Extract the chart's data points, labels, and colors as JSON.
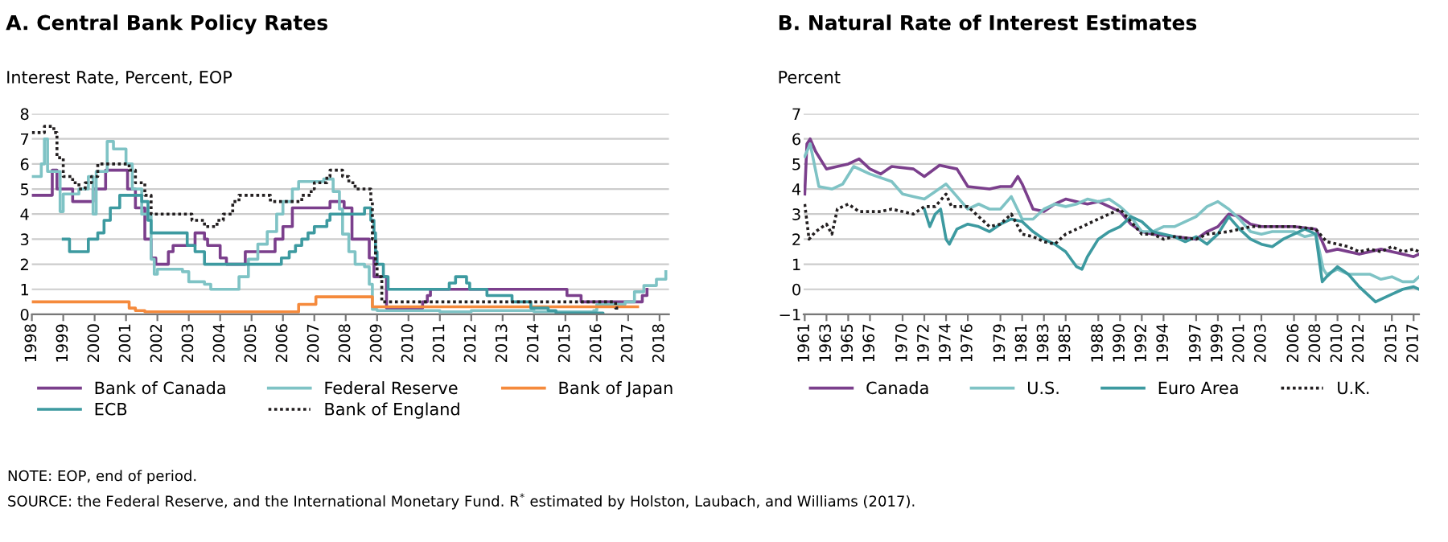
{
  "chart_data": [
    {
      "type": "step",
      "title": "A. Central Bank Policy Rates",
      "ylabel": "Interest Rate, Percent, EOP",
      "xlim": [
        1998,
        2018.3
      ],
      "xticks": [
        1998,
        1999,
        2000,
        2001,
        2002,
        2003,
        2004,
        2005,
        2006,
        2007,
        2008,
        2009,
        2010,
        2011,
        2012,
        2013,
        2014,
        2015,
        2016,
        2017,
        2018
      ],
      "ylim": [
        0,
        8
      ],
      "yticks": [
        0,
        1,
        2,
        3,
        4,
        5,
        6,
        7,
        8
      ],
      "grid": "y",
      "legend": "bottom",
      "series": [
        {
          "name": "Bank of Canada",
          "color": "#7b3f8c",
          "line_style": "solid",
          "x": [
            1998.0,
            1998.65,
            1998.8,
            1999.3,
            1999.95,
            2000.35,
            2001.05,
            2001.3,
            2001.6,
            2001.8,
            2001.95,
            2002.35,
            2002.5,
            2003.2,
            2003.5,
            2003.6,
            2004.0,
            2004.2,
            2004.8,
            2005.75,
            2006.0,
            2006.3,
            2007.5,
            2007.95,
            2008.2,
            2008.75,
            2008.9,
            2009.3,
            2010.45,
            2010.6,
            2010.7,
            2015.05,
            2015.5,
            2017.45,
            2017.6
          ],
          "values": [
            4.75,
            5.75,
            5.0,
            4.5,
            5.0,
            5.75,
            5.0,
            4.25,
            3.0,
            2.25,
            2.0,
            2.5,
            2.75,
            3.25,
            3.0,
            2.75,
            2.25,
            2.0,
            2.5,
            3.0,
            3.5,
            4.25,
            4.5,
            4.25,
            3.0,
            2.25,
            1.5,
            0.25,
            0.5,
            0.75,
            1.0,
            0.75,
            0.5,
            0.75,
            1.0
          ]
        },
        {
          "name": "Federal Reserve",
          "color": "#7fc3c5",
          "line_style": "solid",
          "x": [
            1998.0,
            1998.3,
            1998.4,
            1998.5,
            1998.9,
            1999.0,
            1999.5,
            1999.8,
            1999.95,
            2000.05,
            2000.4,
            2000.6,
            2001.0,
            2001.2,
            2001.5,
            2001.8,
            2001.9,
            2002.0,
            2002.8,
            2003.0,
            2003.5,
            2003.7,
            2004.4,
            2004.6,
            2004.9,
            2005.2,
            2005.5,
            2005.8,
            2006.0,
            2006.3,
            2006.5,
            2007.0,
            2007.3,
            2007.6,
            2007.8,
            2007.9,
            2008.1,
            2008.3,
            2008.6,
            2008.75,
            2008.85,
            2009.0,
            2011.0,
            2012.0,
            2014.0,
            2015.9,
            2016.0,
            2016.9,
            2017.2,
            2017.5,
            2017.9,
            2018.2
          ],
          "values": [
            5.5,
            6.0,
            7.0,
            5.7,
            4.1,
            4.8,
            5.0,
            5.5,
            4.0,
            5.7,
            6.9,
            6.6,
            6.0,
            5.0,
            4.0,
            2.2,
            1.6,
            1.8,
            1.7,
            1.3,
            1.2,
            1.0,
            1.0,
            1.5,
            2.2,
            2.8,
            3.3,
            4.0,
            4.5,
            5.0,
            5.3,
            5.3,
            5.4,
            4.9,
            4.2,
            3.2,
            2.5,
            2.0,
            1.9,
            1.2,
            0.2,
            0.15,
            0.1,
            0.15,
            0.1,
            0.15,
            0.4,
            0.5,
            0.9,
            1.15,
            1.4,
            1.7
          ]
        },
        {
          "name": "Bank of Japan",
          "color": "#f58a3c",
          "line_style": "solid",
          "x": [
            1998.0,
            2001.1,
            2001.3,
            2001.6,
            2006.5,
            2007.05,
            2008.85,
            2017.3
          ],
          "values": [
            0.5,
            0.25,
            0.15,
            0.1,
            0.4,
            0.7,
            0.3,
            0.3
          ]
        },
        {
          "name": "ECB",
          "color": "#3d9aa0",
          "line_style": "solid",
          "x": [
            1999.0,
            1999.2,
            1999.8,
            2000.1,
            2000.3,
            2000.5,
            2000.8,
            2001.5,
            2001.7,
            2001.8,
            2002.95,
            2003.2,
            2003.5,
            2005.95,
            2006.2,
            2006.4,
            2006.6,
            2006.8,
            2007.0,
            2007.4,
            2007.5,
            2008.6,
            2008.8,
            2008.9,
            2008.95,
            2009.0,
            2009.2,
            2009.35,
            2011.3,
            2011.5,
            2011.85,
            2011.95,
            2012.5,
            2013.3,
            2013.9,
            2014.45,
            2014.7,
            2016.2
          ],
          "values": [
            3.0,
            2.5,
            3.0,
            3.25,
            3.75,
            4.25,
            4.75,
            4.5,
            3.75,
            3.25,
            2.75,
            2.5,
            2.0,
            2.25,
            2.5,
            2.75,
            3.0,
            3.25,
            3.5,
            3.75,
            4.0,
            4.25,
            3.75,
            3.25,
            2.5,
            2.0,
            1.5,
            1.0,
            1.25,
            1.5,
            1.25,
            1.0,
            0.75,
            0.5,
            0.25,
            0.15,
            0.05,
            0.0
          ]
        },
        {
          "name": "Bank of England",
          "color": "#231f20",
          "line_style": "dotted",
          "x": [
            1998.0,
            1998.4,
            1998.7,
            1998.8,
            1999.0,
            1999.3,
            1999.5,
            1999.7,
            1999.9,
            2000.1,
            2001.1,
            2001.3,
            2001.6,
            2001.8,
            2003.1,
            2003.5,
            2003.9,
            2004.1,
            2004.4,
            2004.6,
            2005.6,
            2006.6,
            2006.9,
            2007.0,
            2007.4,
            2007.5,
            2007.9,
            2008.1,
            2008.3,
            2008.8,
            2008.85,
            2008.95,
            2009.0,
            2009.15,
            2016.6,
            2016.7
          ],
          "values": [
            7.25,
            7.5,
            7.25,
            6.25,
            5.5,
            5.25,
            5.0,
            5.25,
            5.5,
            6.0,
            5.75,
            5.25,
            4.75,
            4.0,
            3.75,
            3.5,
            3.75,
            4.0,
            4.5,
            4.75,
            4.5,
            4.75,
            5.0,
            5.25,
            5.5,
            5.75,
            5.5,
            5.25,
            5.0,
            4.5,
            3.0,
            2.0,
            1.5,
            0.5,
            0.25,
            0.25
          ]
        }
      ],
      "annotations": [
        "NOTE: EOP, end of period.",
        "SOURCE: the Federal Reserve, and the International Monetary Fund. R$^{*}$ estimated by Holston, Laubach, and Williams (2017)."
      ]
    },
    {
      "type": "line",
      "title": "B. Natural Rate of Interest Estimates",
      "ylabel": "Percent",
      "xlim": [
        1960.9,
        2017.5
      ],
      "xticks": [
        1961,
        1963,
        1965,
        1967,
        1970,
        1972,
        1974,
        1976,
        1979,
        1981,
        1983,
        1985,
        1988,
        1990,
        1992,
        1994,
        1997,
        1999,
        2001,
        2003,
        2006,
        2008,
        2010,
        2012,
        2015,
        2017
      ],
      "ylim": [
        -1,
        7
      ],
      "yticks": [
        {
          "value": -1,
          "label": "−1"
        },
        0,
        1,
        2,
        3,
        4,
        5,
        6,
        7
      ],
      "grid": "y",
      "legend": "bottom",
      "series": [
        {
          "name": "Canada",
          "color": "#7b3f8c",
          "line_style": "solid",
          "x": [
            1961.0,
            1961.2,
            1961.5,
            1962,
            1963,
            1964,
            1965,
            1966,
            1967,
            1968,
            1969,
            1971,
            1972,
            1973.4,
            1975,
            1976,
            1978,
            1979,
            1980,
            1980.6,
            1981,
            1982,
            1983,
            1984,
            1985,
            1986,
            1987,
            1988,
            1989,
            1990,
            1991,
            1992,
            1993,
            1995,
            1997,
            1998,
            1999,
            2000,
            2001,
            2002,
            2003,
            2006,
            2008,
            2008.5,
            2009,
            2010,
            2012,
            2014,
            2015,
            2016,
            2017,
            2017.5
          ],
          "values": [
            3.8,
            5.8,
            6.0,
            5.5,
            4.8,
            4.9,
            5.0,
            5.2,
            4.8,
            4.6,
            4.9,
            4.8,
            4.5,
            4.95,
            4.8,
            4.1,
            4.0,
            4.1,
            4.1,
            4.5,
            4.2,
            3.2,
            3.1,
            3.4,
            3.6,
            3.5,
            3.4,
            3.5,
            3.3,
            3.1,
            2.6,
            2.3,
            2.2,
            2.1,
            2.0,
            2.3,
            2.5,
            3.0,
            2.9,
            2.6,
            2.5,
            2.5,
            2.4,
            2.0,
            1.5,
            1.6,
            1.4,
            1.6,
            1.5,
            1.4,
            1.3,
            1.4
          ]
        },
        {
          "name": "U.S.",
          "color": "#7fc3c5",
          "line_style": "solid",
          "x": [
            1961,
            1961.5,
            1962.3,
            1963.5,
            1964.5,
            1965.5,
            1967,
            1969,
            1970,
            1971,
            1972,
            1973,
            1974,
            1975,
            1976,
            1977,
            1978,
            1979,
            1980,
            1981,
            1982,
            1983,
            1984,
            1985,
            1986,
            1987,
            1988,
            1989,
            1990,
            1991,
            1992,
            1993,
            1994,
            1995,
            1997,
            1998,
            1999,
            2000,
            2001,
            2002,
            2003,
            2004,
            2006,
            2007,
            2008,
            2008.7,
            2009,
            2010,
            2011,
            2013,
            2014,
            2015,
            2016,
            2017,
            2017.5
          ],
          "values": [
            5.3,
            5.8,
            4.1,
            4.0,
            4.2,
            4.9,
            4.6,
            4.3,
            3.8,
            3.7,
            3.6,
            3.9,
            4.2,
            3.7,
            3.2,
            3.4,
            3.2,
            3.2,
            3.7,
            2.8,
            2.8,
            3.2,
            3.4,
            3.3,
            3.4,
            3.6,
            3.5,
            3.6,
            3.3,
            2.9,
            2.3,
            2.3,
            2.5,
            2.5,
            2.9,
            3.3,
            3.5,
            3.2,
            2.8,
            2.3,
            2.2,
            2.3,
            2.3,
            2.1,
            2.2,
            0.8,
            0.6,
            0.8,
            0.6,
            0.6,
            0.4,
            0.5,
            0.3,
            0.3,
            0.5
          ]
        },
        {
          "name": "Euro Area",
          "color": "#3d9aa0",
          "line_style": "solid",
          "x": [
            1972,
            1972.5,
            1973,
            1973.5,
            1974,
            1974.3,
            1975,
            1976,
            1977,
            1978,
            1979,
            1980,
            1981,
            1982,
            1983,
            1984,
            1985,
            1986,
            1986.5,
            1987,
            1988,
            1989,
            1990,
            1991,
            1992,
            1993,
            1994,
            1995,
            1996,
            1997,
            1998,
            1999,
            2000,
            2001,
            2002,
            2003,
            2004,
            2005,
            2006,
            2007,
            2008,
            2008.6,
            2009,
            2010,
            2011,
            2012,
            2013,
            2013.5,
            2014,
            2015,
            2016,
            2017,
            2017.5
          ],
          "values": [
            3.2,
            2.5,
            3.0,
            3.2,
            2.0,
            1.8,
            2.4,
            2.6,
            2.5,
            2.3,
            2.6,
            2.8,
            2.7,
            2.3,
            2.0,
            1.8,
            1.5,
            0.9,
            0.8,
            1.3,
            2.0,
            2.3,
            2.5,
            2.9,
            2.7,
            2.3,
            2.2,
            2.1,
            1.9,
            2.1,
            1.8,
            2.2,
            2.9,
            2.4,
            2.0,
            1.8,
            1.7,
            2.0,
            2.2,
            2.4,
            2.2,
            0.3,
            0.5,
            0.9,
            0.6,
            0.1,
            -0.3,
            -0.5,
            -0.4,
            -0.2,
            0.0,
            0.1,
            0.0
          ]
        },
        {
          "name": "U.K.",
          "color": "#231f20",
          "line_style": "dotted",
          "x": [
            1961,
            1961.4,
            1962,
            1963,
            1963.5,
            1964,
            1965,
            1966,
            1968,
            1969,
            1971,
            1972,
            1973,
            1974,
            1974.5,
            1976,
            1977,
            1978,
            1979,
            1980,
            1981,
            1982,
            1983,
            1984,
            1985,
            1986,
            1987,
            1988,
            1989,
            1990,
            1991,
            1992,
            1993,
            1994,
            1995,
            1997,
            1998,
            2000,
            2002,
            2004,
            2006,
            2008,
            2009,
            2010,
            2011,
            2012,
            2013,
            2014,
            2015,
            2016,
            2017,
            2017.5
          ],
          "values": [
            3.4,
            2.0,
            2.3,
            2.6,
            2.2,
            3.2,
            3.4,
            3.1,
            3.1,
            3.2,
            3.0,
            3.3,
            3.3,
            3.8,
            3.3,
            3.3,
            2.9,
            2.5,
            2.6,
            3.0,
            2.2,
            2.1,
            1.9,
            1.8,
            2.2,
            2.4,
            2.6,
            2.8,
            3.0,
            3.2,
            2.7,
            2.2,
            2.2,
            2.0,
            2.1,
            2.0,
            2.2,
            2.3,
            2.5,
            2.5,
            2.5,
            2.4,
            1.9,
            1.8,
            1.7,
            1.5,
            1.6,
            1.5,
            1.7,
            1.5,
            1.6,
            1.5
          ]
        }
      ]
    }
  ]
}
